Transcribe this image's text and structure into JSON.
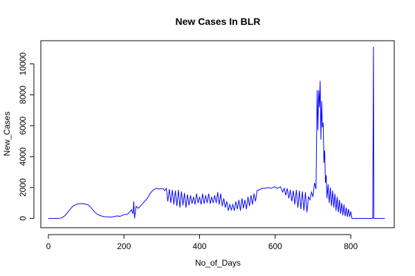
{
  "chart_data": {
    "type": "line",
    "title": "New Cases In BLR",
    "xlabel": "No_of_Days",
    "ylabel": "New_Cases",
    "xlim": [
      -20,
      915
    ],
    "ylim": [
      -600,
      11500
    ],
    "x_ticks": [
      0,
      200,
      400,
      600,
      800
    ],
    "y_ticks": [
      0,
      2000,
      4000,
      6000,
      8000,
      10000
    ],
    "grid": false,
    "series": [
      {
        "color": "#0000ff",
        "points": [
          [
            0,
            0
          ],
          [
            25,
            0
          ],
          [
            35,
            30
          ],
          [
            45,
            200
          ],
          [
            55,
            520
          ],
          [
            65,
            800
          ],
          [
            75,
            920
          ],
          [
            85,
            960
          ],
          [
            95,
            940
          ],
          [
            105,
            880
          ],
          [
            112,
            720
          ],
          [
            120,
            480
          ],
          [
            130,
            260
          ],
          [
            140,
            160
          ],
          [
            150,
            110
          ],
          [
            160,
            90
          ],
          [
            170,
            100
          ],
          [
            180,
            160
          ],
          [
            190,
            140
          ],
          [
            200,
            240
          ],
          [
            210,
            280
          ],
          [
            215,
            420
          ],
          [
            220,
            560
          ],
          [
            224,
            300
          ],
          [
            226,
            1100
          ],
          [
            228,
            0
          ],
          [
            232,
            780
          ],
          [
            238,
            660
          ],
          [
            246,
            860
          ],
          [
            254,
            1100
          ],
          [
            262,
            1300
          ],
          [
            270,
            1650
          ],
          [
            278,
            1850
          ],
          [
            286,
            1950
          ],
          [
            294,
            1900
          ],
          [
            302,
            1950
          ],
          [
            308,
            1800
          ],
          [
            312,
            1950
          ],
          [
            316,
            1100
          ],
          [
            320,
            1900
          ],
          [
            324,
            1000
          ],
          [
            328,
            1850
          ],
          [
            332,
            900
          ],
          [
            336,
            1800
          ],
          [
            340,
            800
          ],
          [
            344,
            1850
          ],
          [
            348,
            700
          ],
          [
            352,
            1750
          ],
          [
            356,
            850
          ],
          [
            360,
            1650
          ],
          [
            364,
            700
          ],
          [
            368,
            1550
          ],
          [
            372,
            850
          ],
          [
            376,
            1500
          ],
          [
            380,
            950
          ],
          [
            384,
            1400
          ],
          [
            388,
            900
          ],
          [
            392,
            1600
          ],
          [
            396,
            1000
          ],
          [
            400,
            1400
          ],
          [
            404,
            900
          ],
          [
            408,
            1600
          ],
          [
            412,
            950
          ],
          [
            416,
            1500
          ],
          [
            420,
            1000
          ],
          [
            424,
            1600
          ],
          [
            428,
            950
          ],
          [
            432,
            1400
          ],
          [
            436,
            1000
          ],
          [
            440,
            1500
          ],
          [
            444,
            1000
          ],
          [
            448,
            1700
          ],
          [
            452,
            900
          ],
          [
            456,
            1600
          ],
          [
            460,
            800
          ],
          [
            464,
            1300
          ],
          [
            468,
            700
          ],
          [
            472,
            1100
          ],
          [
            476,
            500
          ],
          [
            480,
            900
          ],
          [
            484,
            550
          ],
          [
            488,
            900
          ],
          [
            492,
            500
          ],
          [
            496,
            1100
          ],
          [
            500,
            600
          ],
          [
            504,
            1200
          ],
          [
            508,
            500
          ],
          [
            512,
            1300
          ],
          [
            516,
            650
          ],
          [
            520,
            1200
          ],
          [
            524,
            600
          ],
          [
            528,
            1400
          ],
          [
            532,
            800
          ],
          [
            536,
            1500
          ],
          [
            540,
            900
          ],
          [
            544,
            1600
          ],
          [
            548,
            1100
          ],
          [
            552,
            1800
          ],
          [
            558,
            1850
          ],
          [
            566,
            1950
          ],
          [
            574,
            1950
          ],
          [
            582,
            2000
          ],
          [
            590,
            1950
          ],
          [
            598,
            2050
          ],
          [
            606,
            1950
          ],
          [
            614,
            2050
          ],
          [
            620,
            1700
          ],
          [
            624,
            1950
          ],
          [
            628,
            1500
          ],
          [
            632,
            1950
          ],
          [
            636,
            1300
          ],
          [
            640,
            1850
          ],
          [
            644,
            1100
          ],
          [
            648,
            1800
          ],
          [
            652,
            900
          ],
          [
            656,
            1850
          ],
          [
            660,
            700
          ],
          [
            664,
            1800
          ],
          [
            668,
            600
          ],
          [
            672,
            1750
          ],
          [
            676,
            500
          ],
          [
            680,
            1700
          ],
          [
            684,
            400
          ],
          [
            688,
            1400
          ],
          [
            692,
            1200
          ],
          [
            696,
            1700
          ],
          [
            700,
            1400
          ],
          [
            704,
            2300
          ],
          [
            708,
            1900
          ],
          [
            711,
            8300
          ],
          [
            713,
            5700
          ],
          [
            715,
            8300
          ],
          [
            717,
            7200
          ],
          [
            719,
            8900
          ],
          [
            721,
            5100
          ],
          [
            723,
            7600
          ],
          [
            725,
            5900
          ],
          [
            727,
            6200
          ],
          [
            729,
            3600
          ],
          [
            731,
            4400
          ],
          [
            733,
            2300
          ],
          [
            735,
            2800
          ],
          [
            737,
            1300
          ],
          [
            740,
            2200
          ],
          [
            743,
            1000
          ],
          [
            746,
            2000
          ],
          [
            749,
            800
          ],
          [
            752,
            1800
          ],
          [
            755,
            700
          ],
          [
            758,
            1600
          ],
          [
            761,
            500
          ],
          [
            764,
            1400
          ],
          [
            767,
            400
          ],
          [
            770,
            1200
          ],
          [
            773,
            300
          ],
          [
            776,
            1000
          ],
          [
            779,
            200
          ],
          [
            782,
            900
          ],
          [
            785,
            150
          ],
          [
            788,
            700
          ],
          [
            791,
            100
          ],
          [
            794,
            600
          ],
          [
            797,
            100
          ],
          [
            800,
            450
          ],
          [
            803,
            0
          ],
          [
            858,
            0
          ],
          [
            860,
            11100
          ],
          [
            861,
            0
          ],
          [
            890,
            0
          ]
        ]
      }
    ]
  }
}
